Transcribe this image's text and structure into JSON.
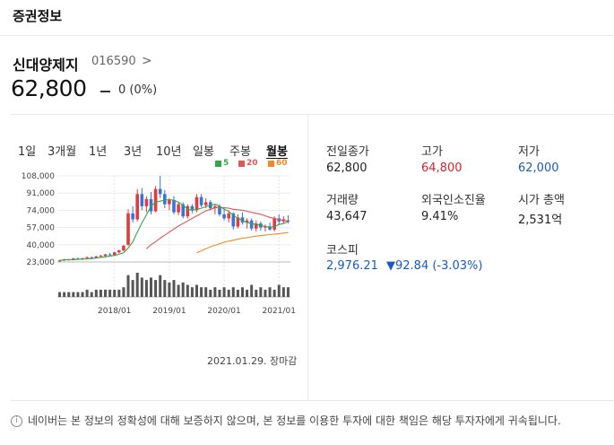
{
  "header": {
    "section_title": "증권정보"
  },
  "stock": {
    "name": "신대양제지",
    "code": "016590",
    "chevron": ">",
    "price": "62,800",
    "change": "0 (0%)"
  },
  "tabs": [
    {
      "label": "1일",
      "active": false
    },
    {
      "label": "3개월",
      "active": false
    },
    {
      "label": "1년",
      "active": false
    },
    {
      "label": "3년",
      "active": false
    },
    {
      "label": "10년",
      "active": false
    },
    {
      "label": "일봉",
      "active": false
    },
    {
      "label": "주봉",
      "active": false
    },
    {
      "label": "월봉",
      "active": true
    }
  ],
  "legend": [
    {
      "label": "5",
      "color": "#2fa84a"
    },
    {
      "label": "20",
      "color": "#e05555"
    },
    {
      "label": "60",
      "color": "#f08a24"
    }
  ],
  "chart_data": {
    "type": "candlestick",
    "title": "",
    "y_ticks": [
      "108,000",
      "91,000",
      "74,000",
      "57,000",
      "40,000",
      "23,000"
    ],
    "ylim": [
      23000,
      108000
    ],
    "x_ticks": [
      "2018/01",
      "2019/01",
      "2020/01",
      "2021/01"
    ],
    "x_tick_index": [
      12,
      24,
      36,
      48
    ],
    "grid": true,
    "legend_position": "top-right",
    "candles": [
      [
        24000,
        25000,
        23000,
        24500
      ],
      [
        24500,
        26000,
        24000,
        25500
      ],
      [
        25500,
        26000,
        24500,
        25000
      ],
      [
        25000,
        27000,
        24500,
        26500
      ],
      [
        26500,
        27500,
        25500,
        26000
      ],
      [
        26000,
        27000,
        25000,
        26800
      ],
      [
        26800,
        28500,
        26000,
        27500
      ],
      [
        27500,
        28500,
        26500,
        27000
      ],
      [
        27000,
        29000,
        26500,
        28500
      ],
      [
        28500,
        30000,
        27500,
        29000
      ],
      [
        29000,
        31000,
        28000,
        30500
      ],
      [
        30500,
        32000,
        29500,
        30000
      ],
      [
        30000,
        33000,
        29000,
        32500
      ],
      [
        32500,
        35000,
        31500,
        34500
      ],
      [
        34500,
        40000,
        33500,
        39000
      ],
      [
        40000,
        75000,
        39000,
        71000
      ],
      [
        71000,
        78000,
        62000,
        65000
      ],
      [
        65000,
        95000,
        63000,
        90000
      ],
      [
        90000,
        96000,
        74000,
        78000
      ],
      [
        78000,
        88000,
        72000,
        85000
      ],
      [
        85000,
        92000,
        70000,
        73000
      ],
      [
        73000,
        98000,
        72000,
        95000
      ],
      [
        95000,
        108000,
        86000,
        90000
      ],
      [
        90000,
        94000,
        76000,
        80000
      ],
      [
        80000,
        86000,
        74000,
        84000
      ],
      [
        84000,
        88000,
        70000,
        72000
      ],
      [
        72000,
        82000,
        69000,
        80000
      ],
      [
        80000,
        82000,
        66000,
        68000
      ],
      [
        68000,
        80000,
        66000,
        78000
      ],
      [
        78000,
        80000,
        71000,
        74000
      ],
      [
        74000,
        90000,
        72000,
        87000
      ],
      [
        87000,
        90000,
        77000,
        79000
      ],
      [
        79000,
        86000,
        76000,
        82000
      ],
      [
        82000,
        84000,
        74000,
        76000
      ],
      [
        76000,
        80000,
        70000,
        78000
      ],
      [
        78000,
        80000,
        68000,
        70000
      ],
      [
        70000,
        76000,
        64000,
        66000
      ],
      [
        66000,
        74000,
        62000,
        71000
      ],
      [
        71000,
        72000,
        55000,
        58000
      ],
      [
        58000,
        70000,
        56000,
        67000
      ],
      [
        67000,
        72000,
        60000,
        62000
      ],
      [
        62000,
        66000,
        56000,
        64000
      ],
      [
        64000,
        66000,
        54000,
        56000
      ],
      [
        56000,
        64000,
        53000,
        61000
      ],
      [
        61000,
        63000,
        54000,
        57000
      ],
      [
        57000,
        60000,
        53000,
        58000
      ],
      [
        58000,
        62000,
        54000,
        55000
      ],
      [
        55000,
        68000,
        53000,
        66000
      ],
      [
        66000,
        70000,
        60000,
        63000
      ],
      [
        63000,
        68000,
        61000,
        65000
      ],
      [
        64000,
        69000,
        61000,
        62800
      ]
    ],
    "ma5": [
      24500,
      25000,
      25200,
      25300,
      25600,
      25800,
      26100,
      26400,
      26900,
      27400,
      28100,
      28800,
      29500,
      30600,
      32200,
      36800,
      42800,
      52500,
      61500,
      69500,
      78000,
      82000,
      83000,
      84000,
      84500,
      84000,
      82000,
      79000,
      75000,
      74000,
      75000,
      76000,
      77500,
      79000,
      80000,
      78000,
      75000,
      73000,
      69000,
      66000,
      64000,
      62000,
      61000,
      60000,
      59000,
      58000,
      57500,
      58000,
      60000,
      61000,
      62800
    ],
    "ma20": [
      null,
      null,
      null,
      null,
      null,
      null,
      null,
      null,
      null,
      null,
      null,
      null,
      null,
      null,
      null,
      null,
      null,
      null,
      null,
      36000,
      40000,
      43000,
      46500,
      49500,
      52500,
      55500,
      58500,
      61000,
      63500,
      66000,
      68500,
      71000,
      73500,
      75000,
      76500,
      77000,
      76500,
      76000,
      75000,
      74500,
      74000,
      73000,
      72000,
      71000,
      70000,
      68500,
      67000,
      66000,
      65000,
      64000,
      63500
    ],
    "ma60": [
      null,
      null,
      null,
      null,
      null,
      null,
      null,
      null,
      null,
      null,
      null,
      null,
      null,
      null,
      null,
      null,
      null,
      null,
      null,
      null,
      null,
      null,
      null,
      null,
      null,
      null,
      null,
      null,
      null,
      null,
      32000,
      34000,
      36000,
      38000,
      39500,
      41000,
      42500,
      43500,
      44500,
      45500,
      46500,
      47000,
      47800,
      48500,
      49000,
      49500,
      50000,
      50500,
      51000,
      51500,
      52000
    ],
    "volume": [
      2,
      2,
      2,
      2,
      2,
      2,
      3,
      2,
      3,
      3,
      3,
      3,
      3,
      3,
      4,
      9,
      7,
      10,
      8,
      7,
      8,
      7,
      9,
      7,
      6,
      7,
      5,
      6,
      5,
      4,
      5,
      4,
      4,
      3,
      4,
      3,
      4,
      3,
      4,
      3,
      4,
      3,
      5,
      3,
      4,
      3,
      4,
      3,
      5,
      4,
      4
    ]
  },
  "chart_date": "2021.01.29. 장마감",
  "stats": [
    {
      "label": "전일종가",
      "value": "62,800",
      "color": "#222"
    },
    {
      "label": "고가",
      "value": "64,800",
      "color": "#d9242b"
    },
    {
      "label": "저가",
      "value": "62,000",
      "color": "#1a58c9"
    },
    {
      "label": "거래량",
      "value": "43,647",
      "color": "#222"
    },
    {
      "label": "외국인소진율",
      "value": "9.41%",
      "color": "#222"
    },
    {
      "label": "시가 총액",
      "value": "2,531억",
      "color": "#222"
    }
  ],
  "kospi": {
    "label": "코스피",
    "value": "2,976.21",
    "change": "▼92.84 (-3.03%)"
  },
  "disclaimer": {
    "icon": "info-icon",
    "glyph": "i",
    "text": "네이버는 본 정보의 정확성에 대해 보증하지 않으며, 본 정보를 이용한 투자에 대한 책임은 해당 투자자에게 귀속됩니다."
  }
}
